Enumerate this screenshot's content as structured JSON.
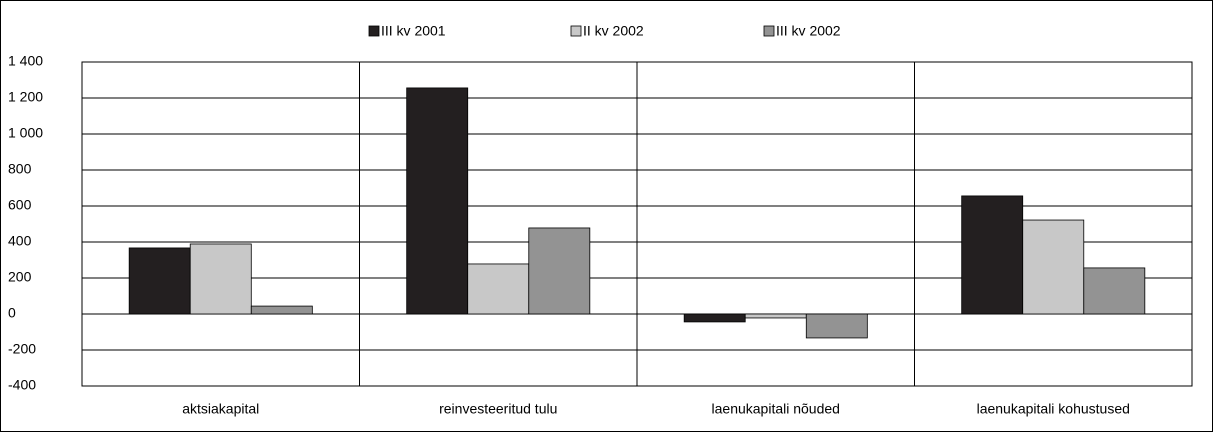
{
  "chart_data": {
    "type": "bar",
    "categories": [
      "aktsiakapital",
      "reinvesteeritud tulu",
      "laenukapitali nõuded",
      "laenukapitali kohustused"
    ],
    "series": [
      {
        "name": "III kv 2001",
        "color": "#231f20",
        "values": [
          367,
          1256,
          -44,
          656
        ]
      },
      {
        "name": "II kv 2002",
        "color": "#c8c8c8",
        "values": [
          389,
          278,
          -22,
          522
        ]
      },
      {
        "name": "III kv 2002",
        "color": "#939393",
        "values": [
          44,
          478,
          -133,
          256
        ]
      }
    ],
    "ylim": [
      -400,
      1400
    ],
    "yticks": [
      -400,
      -200,
      0,
      200,
      400,
      600,
      800,
      {
        "value": 1000,
        "label": "1 000"
      },
      {
        "value": 1200,
        "label": "1 200"
      },
      {
        "value": 1400,
        "label": "1 400"
      }
    ],
    "grid": true,
    "legend": "top"
  }
}
